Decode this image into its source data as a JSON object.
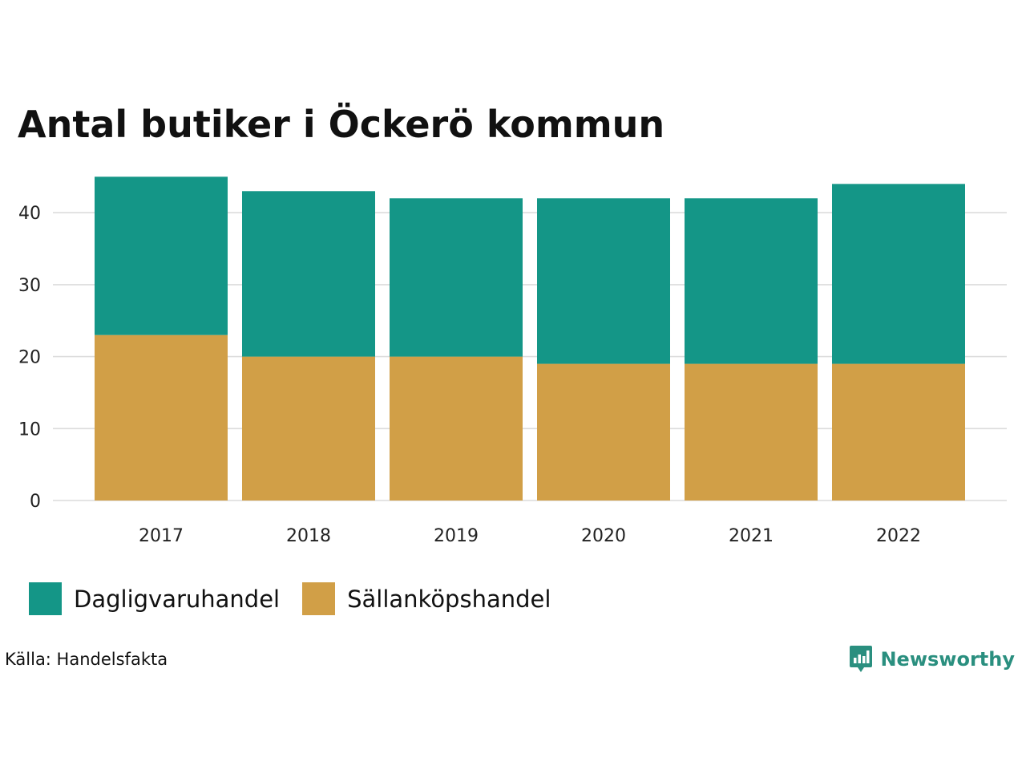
{
  "chart_data": {
    "type": "bar",
    "stacked": true,
    "title": "Antal butiker i Öckerö kommun",
    "xlabel": "",
    "ylabel": "",
    "categories": [
      "2017",
      "2018",
      "2019",
      "2020",
      "2021",
      "2022"
    ],
    "series": [
      {
        "name": "Sällanköpshandel",
        "values": [
          23,
          20,
          20,
          19,
          19,
          19
        ],
        "color": "#d19f47"
      },
      {
        "name": "Dagligvaruhandel",
        "values": [
          22,
          23,
          22,
          23,
          23,
          25
        ],
        "color": "#149687"
      }
    ],
    "ylim": [
      0,
      47
    ],
    "yticks": [
      0,
      10,
      20,
      30,
      40
    ],
    "grid": true,
    "legend_position": "bottom-left",
    "source": "Källa: Handelsfakta"
  },
  "legend": [
    {
      "label": "Dagligvaruhandel",
      "color": "#149687"
    },
    {
      "label": "Sällanköpshandel",
      "color": "#d19f47"
    }
  ],
  "brand": {
    "name": "Newsworthy",
    "icon": "newsworthy-logo-icon",
    "color": "#2a8f7f"
  }
}
